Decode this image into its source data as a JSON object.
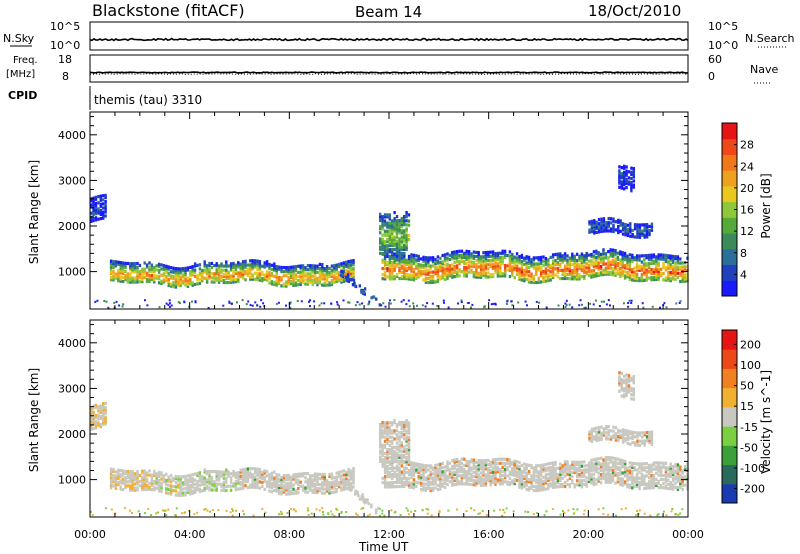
{
  "header": {
    "station": "Blackstone (fitACF)",
    "beam": "Beam 14",
    "date": "18/Oct/2010"
  },
  "strips": {
    "nsky_label": "N.Sky",
    "nsky_ticks": [
      "10^5",
      "10^0"
    ],
    "nsearch_label": "N.Search",
    "nsearch_ticks": [
      "10^5",
      "10^0"
    ],
    "freq_label": "Freq.",
    "freq_unit": "[MHz]",
    "freq_ticks": [
      "18",
      "8"
    ],
    "nave_label": "Nave",
    "nave_ticks": [
      "60",
      "0"
    ],
    "cpid_label": "CPID",
    "cpid_value": "themis (tau) 3310"
  },
  "x_axis": {
    "label": "Time UT",
    "ticks": [
      "00:00",
      "04:00",
      "08:00",
      "12:00",
      "16:00",
      "20:00",
      "00:00"
    ]
  },
  "chart_data": [
    {
      "type": "heatmap",
      "panel": "power",
      "ylabel": "Slant Range [km]",
      "yticks": [
        "1000",
        "2000",
        "3000",
        "4000"
      ],
      "ylim": [
        180,
        4500
      ],
      "xlim_hours": [
        0,
        24
      ],
      "colorbar_label": "Power [dB]",
      "colorbar_ticks": [
        "4",
        "8",
        "12",
        "16",
        "20",
        "24",
        "28"
      ],
      "colorbar_colors": [
        "#1a1aff",
        "#2040c0",
        "#2a6e9a",
        "#3a8a5a",
        "#55aa3a",
        "#8ec83a",
        "#e8c81e",
        "#f0a020",
        "#f07818",
        "#ee4818",
        "#e61414"
      ],
      "echo_regions": [
        {
          "t0": 0.8,
          "t1": 10.6,
          "r0": 750,
          "r1": 1200,
          "core": 900,
          "level": 0.75
        },
        {
          "t0": 11.7,
          "t1": 24.0,
          "r0": 850,
          "r1": 1400,
          "core": 1050,
          "level": 0.85
        },
        {
          "t0": 11.6,
          "t1": 12.8,
          "r0": 1400,
          "r1": 2300,
          "core": 1800,
          "level": 0.5
        },
        {
          "t0": 0.0,
          "t1": 0.6,
          "r0": 2100,
          "r1": 2600,
          "core": 2350,
          "level": 0.15
        },
        {
          "t0": 20.0,
          "t1": 22.6,
          "r0": 1800,
          "r1": 2100,
          "core": 1950,
          "level": 0.2
        },
        {
          "t0": 21.2,
          "t1": 21.8,
          "r0": 2800,
          "r1": 3300,
          "core": 3050,
          "level": 0.1
        }
      ]
    },
    {
      "type": "heatmap",
      "panel": "velocity",
      "ylabel": "Slant Range [km]",
      "yticks": [
        "1000",
        "2000",
        "3000",
        "4000"
      ],
      "ylim": [
        180,
        4500
      ],
      "xlim_hours": [
        0,
        24
      ],
      "colorbar_label": "Velocity [m s^-1]",
      "colorbar_ticks": [
        "200",
        "100",
        "50",
        "15",
        "-15",
        "-50",
        "-100",
        "-200"
      ],
      "colorbar_colors": [
        "#1a3ab0",
        "#2a6a5a",
        "#3aa03a",
        "#7ad040",
        "#c8c8c0",
        "#f0b030",
        "#f08020",
        "#ee4818",
        "#e61414"
      ],
      "echo_regions": [
        {
          "t0": 0.8,
          "t1": 10.6,
          "r0": 750,
          "r1": 1200,
          "core": 900,
          "level": 0.45
        },
        {
          "t0": 11.7,
          "t1": 24.0,
          "r0": 850,
          "r1": 1400,
          "core": 1050,
          "level": 0.45
        },
        {
          "t0": 11.6,
          "t1": 12.8,
          "r0": 1400,
          "r1": 2300,
          "core": 1800,
          "level": 0.45
        },
        {
          "t0": 0.0,
          "t1": 0.6,
          "r0": 2100,
          "r1": 2600,
          "core": 2350,
          "level": 0.45
        },
        {
          "t0": 20.0,
          "t1": 22.6,
          "r0": 1800,
          "r1": 2100,
          "core": 1950,
          "level": 0.45
        },
        {
          "t0": 21.2,
          "t1": 21.8,
          "r0": 2800,
          "r1": 3300,
          "core": 3050,
          "level": 0.45
        }
      ]
    }
  ]
}
